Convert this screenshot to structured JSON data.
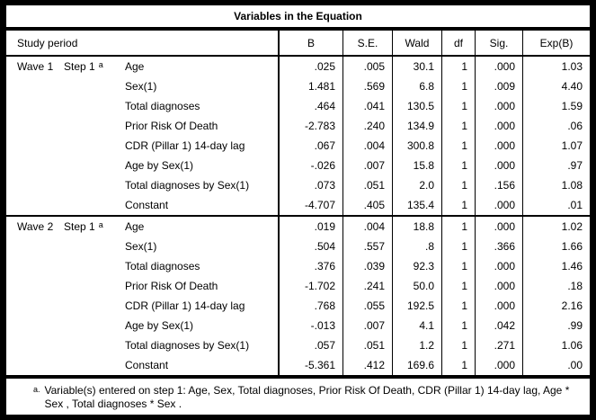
{
  "title": "Variables in the Equation",
  "header": {
    "study_period": "Study period",
    "stats": [
      "B",
      "S.E.",
      "Wald",
      "df",
      "Sig.",
      "Exp(B)"
    ]
  },
  "table": {
    "groups": [
      {
        "wave": "Wave 1",
        "step_label": "Step 1",
        "step_marker": "a",
        "rows": [
          {
            "variable": "Age",
            "b": ".025",
            "se": ".005",
            "wald": "30.1",
            "df": "1",
            "sig": ".000",
            "expb": "1.03"
          },
          {
            "variable": "Sex(1)",
            "b": "1.481",
            "se": ".569",
            "wald": "6.8",
            "df": "1",
            "sig": ".009",
            "expb": "4.40"
          },
          {
            "variable": "Total diagnoses",
            "b": ".464",
            "se": ".041",
            "wald": "130.5",
            "df": "1",
            "sig": ".000",
            "expb": "1.59"
          },
          {
            "variable": "Prior Risk Of Death",
            "b": "-2.783",
            "se": ".240",
            "wald": "134.9",
            "df": "1",
            "sig": ".000",
            "expb": ".06"
          },
          {
            "variable": "CDR (Pillar 1) 14-day lag",
            "b": ".067",
            "se": ".004",
            "wald": "300.8",
            "df": "1",
            "sig": ".000",
            "expb": "1.07"
          },
          {
            "variable": "Age by Sex(1)",
            "b": "-.026",
            "se": ".007",
            "wald": "15.8",
            "df": "1",
            "sig": ".000",
            "expb": ".97"
          },
          {
            "variable": "Total diagnoses by Sex(1)",
            "b": ".073",
            "se": ".051",
            "wald": "2.0",
            "df": "1",
            "sig": ".156",
            "expb": "1.08"
          },
          {
            "variable": "Constant",
            "b": "-4.707",
            "se": ".405",
            "wald": "135.4",
            "df": "1",
            "sig": ".000",
            "expb": ".01"
          }
        ]
      },
      {
        "wave": "Wave 2",
        "step_label": "Step 1",
        "step_marker": "a",
        "rows": [
          {
            "variable": "Age",
            "b": ".019",
            "se": ".004",
            "wald": "18.8",
            "df": "1",
            "sig": ".000",
            "expb": "1.02"
          },
          {
            "variable": "Sex(1)",
            "b": ".504",
            "se": ".557",
            "wald": ".8",
            "df": "1",
            "sig": ".366",
            "expb": "1.66"
          },
          {
            "variable": "Total diagnoses",
            "b": ".376",
            "se": ".039",
            "wald": "92.3",
            "df": "1",
            "sig": ".000",
            "expb": "1.46"
          },
          {
            "variable": "Prior Risk Of Death",
            "b": "-1.702",
            "se": ".241",
            "wald": "50.0",
            "df": "1",
            "sig": ".000",
            "expb": ".18"
          },
          {
            "variable": "CDR (Pillar 1) 14-day lag",
            "b": ".768",
            "se": ".055",
            "wald": "192.5",
            "df": "1",
            "sig": ".000",
            "expb": "2.16"
          },
          {
            "variable": "Age by Sex(1)",
            "b": "-.013",
            "se": ".007",
            "wald": "4.1",
            "df": "1",
            "sig": ".042",
            "expb": ".99"
          },
          {
            "variable": "Total diagnoses by Sex(1)",
            "b": ".057",
            "se": ".051",
            "wald": "1.2",
            "df": "1",
            "sig": ".271",
            "expb": "1.06"
          },
          {
            "variable": "Constant",
            "b": "-5.361",
            "se": ".412",
            "wald": "169.6",
            "df": "1",
            "sig": ".000",
            "expb": ".00"
          }
        ]
      }
    ]
  },
  "footnote": {
    "marker": "a.",
    "text": "Variable(s) entered on step 1: Age, Sex, Total diagnoses, Prior Risk Of Death, CDR (Pillar 1) 14-day lag, Age * Sex , Total diagnoses * Sex ."
  },
  "colors": {
    "frame": "#000000",
    "table_background": "#ffffff",
    "text": "#000000",
    "border": "#000000"
  }
}
